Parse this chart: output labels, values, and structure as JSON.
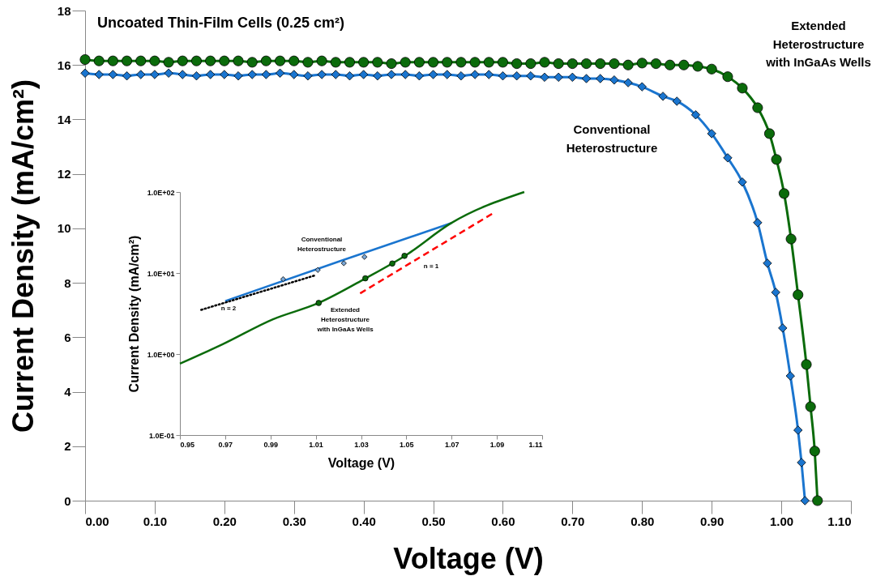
{
  "chart_data": [
    {
      "type": "line",
      "title": "Uncoated Thin-Film Cells (0.25 cm²)",
      "xlabel": "Voltage (V)",
      "ylabel": "Current Density (mA/cm²)",
      "xlim": [
        0,
        1.1
      ],
      "xticks": [
        {
          "value": 0,
          "label": "0.00"
        },
        {
          "value": 0.1,
          "label": "0.10"
        },
        {
          "value": 0.2,
          "label": "0.20"
        },
        {
          "value": 0.3,
          "label": "0.30"
        },
        {
          "value": 0.4,
          "label": "0.40"
        },
        {
          "value": 0.5,
          "label": "0.50"
        },
        {
          "value": 0.6,
          "label": "0.60"
        },
        {
          "value": 0.7,
          "label": "0.70"
        },
        {
          "value": 0.8,
          "label": "0.80"
        },
        {
          "value": 0.9,
          "label": "0.90"
        },
        {
          "value": 1,
          "label": "1.00"
        },
        {
          "value": 1.1,
          "label": "1.10"
        }
      ],
      "ylim": [
        0,
        18
      ],
      "yticks": [
        0,
        2,
        4,
        6,
        8,
        10,
        12,
        14,
        16,
        18
      ],
      "grid": false,
      "series": [
        {
          "name": "Conventional Heterostructure",
          "type": "line",
          "color": "#1a75cf",
          "marker": "diamond",
          "line_style": "solid",
          "x": [
            0,
            0.02,
            0.04,
            0.06,
            0.08,
            0.1,
            0.12,
            0.14,
            0.16,
            0.18,
            0.2,
            0.22,
            0.24,
            0.26,
            0.28,
            0.3,
            0.32,
            0.34,
            0.36,
            0.38,
            0.4,
            0.42,
            0.44,
            0.46,
            0.48,
            0.5,
            0.52,
            0.54,
            0.56,
            0.58,
            0.6,
            0.62,
            0.64,
            0.66,
            0.68,
            0.7,
            0.72,
            0.74,
            0.76,
            0.78,
            0.8,
            0.83,
            0.85,
            0.877,
            0.9,
            0.923,
            0.944,
            0.966,
            0.98,
            0.992,
            1.002,
            1.013,
            1.024,
            1.029,
            1.034
          ],
          "values": [
            15.7,
            15.65,
            15.65,
            15.6,
            15.65,
            15.65,
            15.7,
            15.65,
            15.6,
            15.65,
            15.65,
            15.6,
            15.65,
            15.65,
            15.7,
            15.65,
            15.6,
            15.65,
            15.65,
            15.6,
            15.65,
            15.6,
            15.65,
            15.65,
            15.6,
            15.65,
            15.65,
            15.6,
            15.65,
            15.65,
            15.6,
            15.6,
            15.6,
            15.55,
            15.55,
            15.55,
            15.5,
            15.5,
            15.45,
            15.35,
            15.2,
            14.85,
            14.67,
            14.17,
            13.48,
            12.59,
            11.7,
            10.21,
            8.72,
            7.65,
            6.34,
            4.58,
            2.59,
            1.4,
            0
          ]
        },
        {
          "name": "Extended Heterostructure with InGaAs Wells",
          "type": "line",
          "color": "#0b6b0b",
          "marker": "circle",
          "line_style": "solid",
          "x": [
            0,
            0.02,
            0.04,
            0.06,
            0.08,
            0.1,
            0.12,
            0.14,
            0.16,
            0.18,
            0.2,
            0.22,
            0.24,
            0.26,
            0.28,
            0.3,
            0.32,
            0.34,
            0.36,
            0.38,
            0.4,
            0.42,
            0.44,
            0.46,
            0.48,
            0.5,
            0.52,
            0.54,
            0.56,
            0.58,
            0.6,
            0.62,
            0.64,
            0.66,
            0.68,
            0.7,
            0.72,
            0.74,
            0.76,
            0.78,
            0.8,
            0.82,
            0.84,
            0.86,
            0.88,
            0.9,
            0.923,
            0.944,
            0.966,
            0.983,
            0.993,
            1.004,
            1.014,
            1.024,
            1.036,
            1.042,
            1.048,
            1.052
          ],
          "values": [
            16.2,
            16.15,
            16.15,
            16.15,
            16.15,
            16.15,
            16.1,
            16.15,
            16.15,
            16.15,
            16.15,
            16.15,
            16.1,
            16.15,
            16.15,
            16.15,
            16.1,
            16.15,
            16.1,
            16.1,
            16.1,
            16.1,
            16.05,
            16.1,
            16.1,
            16.1,
            16.1,
            16.1,
            16.1,
            16.1,
            16.1,
            16.05,
            16.05,
            16.1,
            16.05,
            16.05,
            16.05,
            16.05,
            16.05,
            16.0,
            16.07,
            16.05,
            16.0,
            16.0,
            15.95,
            15.85,
            15.57,
            15.15,
            14.43,
            13.48,
            12.53,
            11.28,
            9.61,
            7.56,
            5.0,
            3.45,
            1.82,
            0
          ]
        }
      ]
    },
    {
      "type": "line",
      "xlabel": "Voltage (V)",
      "ylabel": "Current Density (mA/cm²)",
      "log": "y",
      "xlim": [
        0.95,
        1.11
      ],
      "xticks": [
        0.95,
        0.97,
        0.99,
        1.01,
        1.03,
        1.05,
        1.07,
        1.09,
        1.11
      ],
      "ylim": [
        0.1,
        100
      ],
      "yticks": [
        {
          "value": 0.1,
          "label": "1.0E-01"
        },
        {
          "value": 1,
          "label": "1.0E+00"
        },
        {
          "value": 10,
          "label": "1.0E+01"
        },
        {
          "value": 100,
          "label": "1.0E+02"
        }
      ],
      "grid": false,
      "series": [
        {
          "name": "Conventional Heterostructure",
          "type": "line",
          "color": "#1a75cf",
          "marker": "none",
          "line_style": "solid",
          "x": [
            0.97,
            1.02,
            1.07
          ],
          "values": [
            4.5,
            13.8,
            41.5
          ]
        },
        {
          "type": "scatter",
          "color": "#7aa7d6",
          "marker": "diamond",
          "x": [
            0.9956,
            1.0109,
            1.0224,
            1.0315
          ],
          "values": [
            8.4,
            10.9,
            13.2,
            15.8
          ]
        },
        {
          "name": "Extended Heterostructure with InGaAs Wells",
          "type": "line",
          "color": "#0b6b0b",
          "marker": "none",
          "line_style": "solid",
          "x": [
            0.95,
            0.9691,
            0.9909,
            1.0113,
            1.032,
            1.05,
            1.0695,
            1.1021
          ],
          "values": [
            0.76,
            1.33,
            2.67,
            4.27,
            8.6,
            16.7,
            40.8,
            100
          ]
        },
        {
          "type": "scatter",
          "color": "#0b6b0b",
          "marker": "circle",
          "x": [
            1.0113,
            1.0319,
            1.0438,
            1.0492
          ],
          "values": [
            4.27,
            8.6,
            13.1,
            16.3
          ]
        },
        {
          "name": "n = 2",
          "type": "line",
          "color": "#000000",
          "marker": "none",
          "line_style": "dotted",
          "x": [
            0.9594,
            1.0094
          ],
          "values": [
            3.51,
            9.3
          ]
        },
        {
          "name": "n = 1",
          "type": "line",
          "color": "#ff0000",
          "marker": "none",
          "line_style": "dashed",
          "x": [
            1.0296,
            1.0888
          ],
          "values": [
            5.61,
            55.7
          ]
        }
      ]
    }
  ]
}
